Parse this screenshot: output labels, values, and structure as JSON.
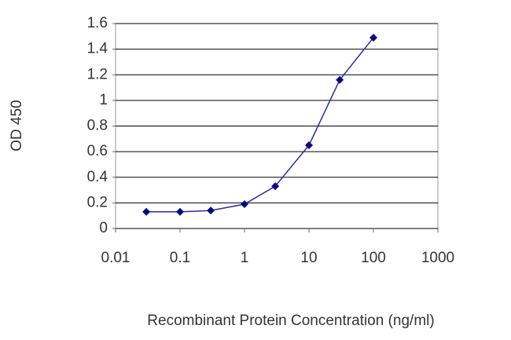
{
  "chart_data": {
    "type": "line",
    "x_label": "Recombinant Protein Concentration (ng/ml)",
    "y_label": "OD 450",
    "x": [
      0.03,
      0.1,
      0.3,
      1,
      3,
      10,
      30,
      100
    ],
    "series": [
      {
        "color": "#2b2ba8",
        "marker_color": "#0a0a80",
        "values": [
          0.13,
          0.13,
          0.14,
          0.19,
          0.33,
          0.65,
          1.16,
          1.49
        ]
      }
    ],
    "xlim": [
      0.01,
      1000
    ],
    "xticks": [
      0.01,
      0.1,
      1,
      10,
      100,
      1000
    ],
    "xlog": true,
    "ylim": [
      0,
      1.6
    ],
    "yticks": [
      0,
      0.2,
      0.4,
      0.6,
      0.8,
      1,
      1.2,
      1.4,
      1.6
    ],
    "grid": true
  }
}
